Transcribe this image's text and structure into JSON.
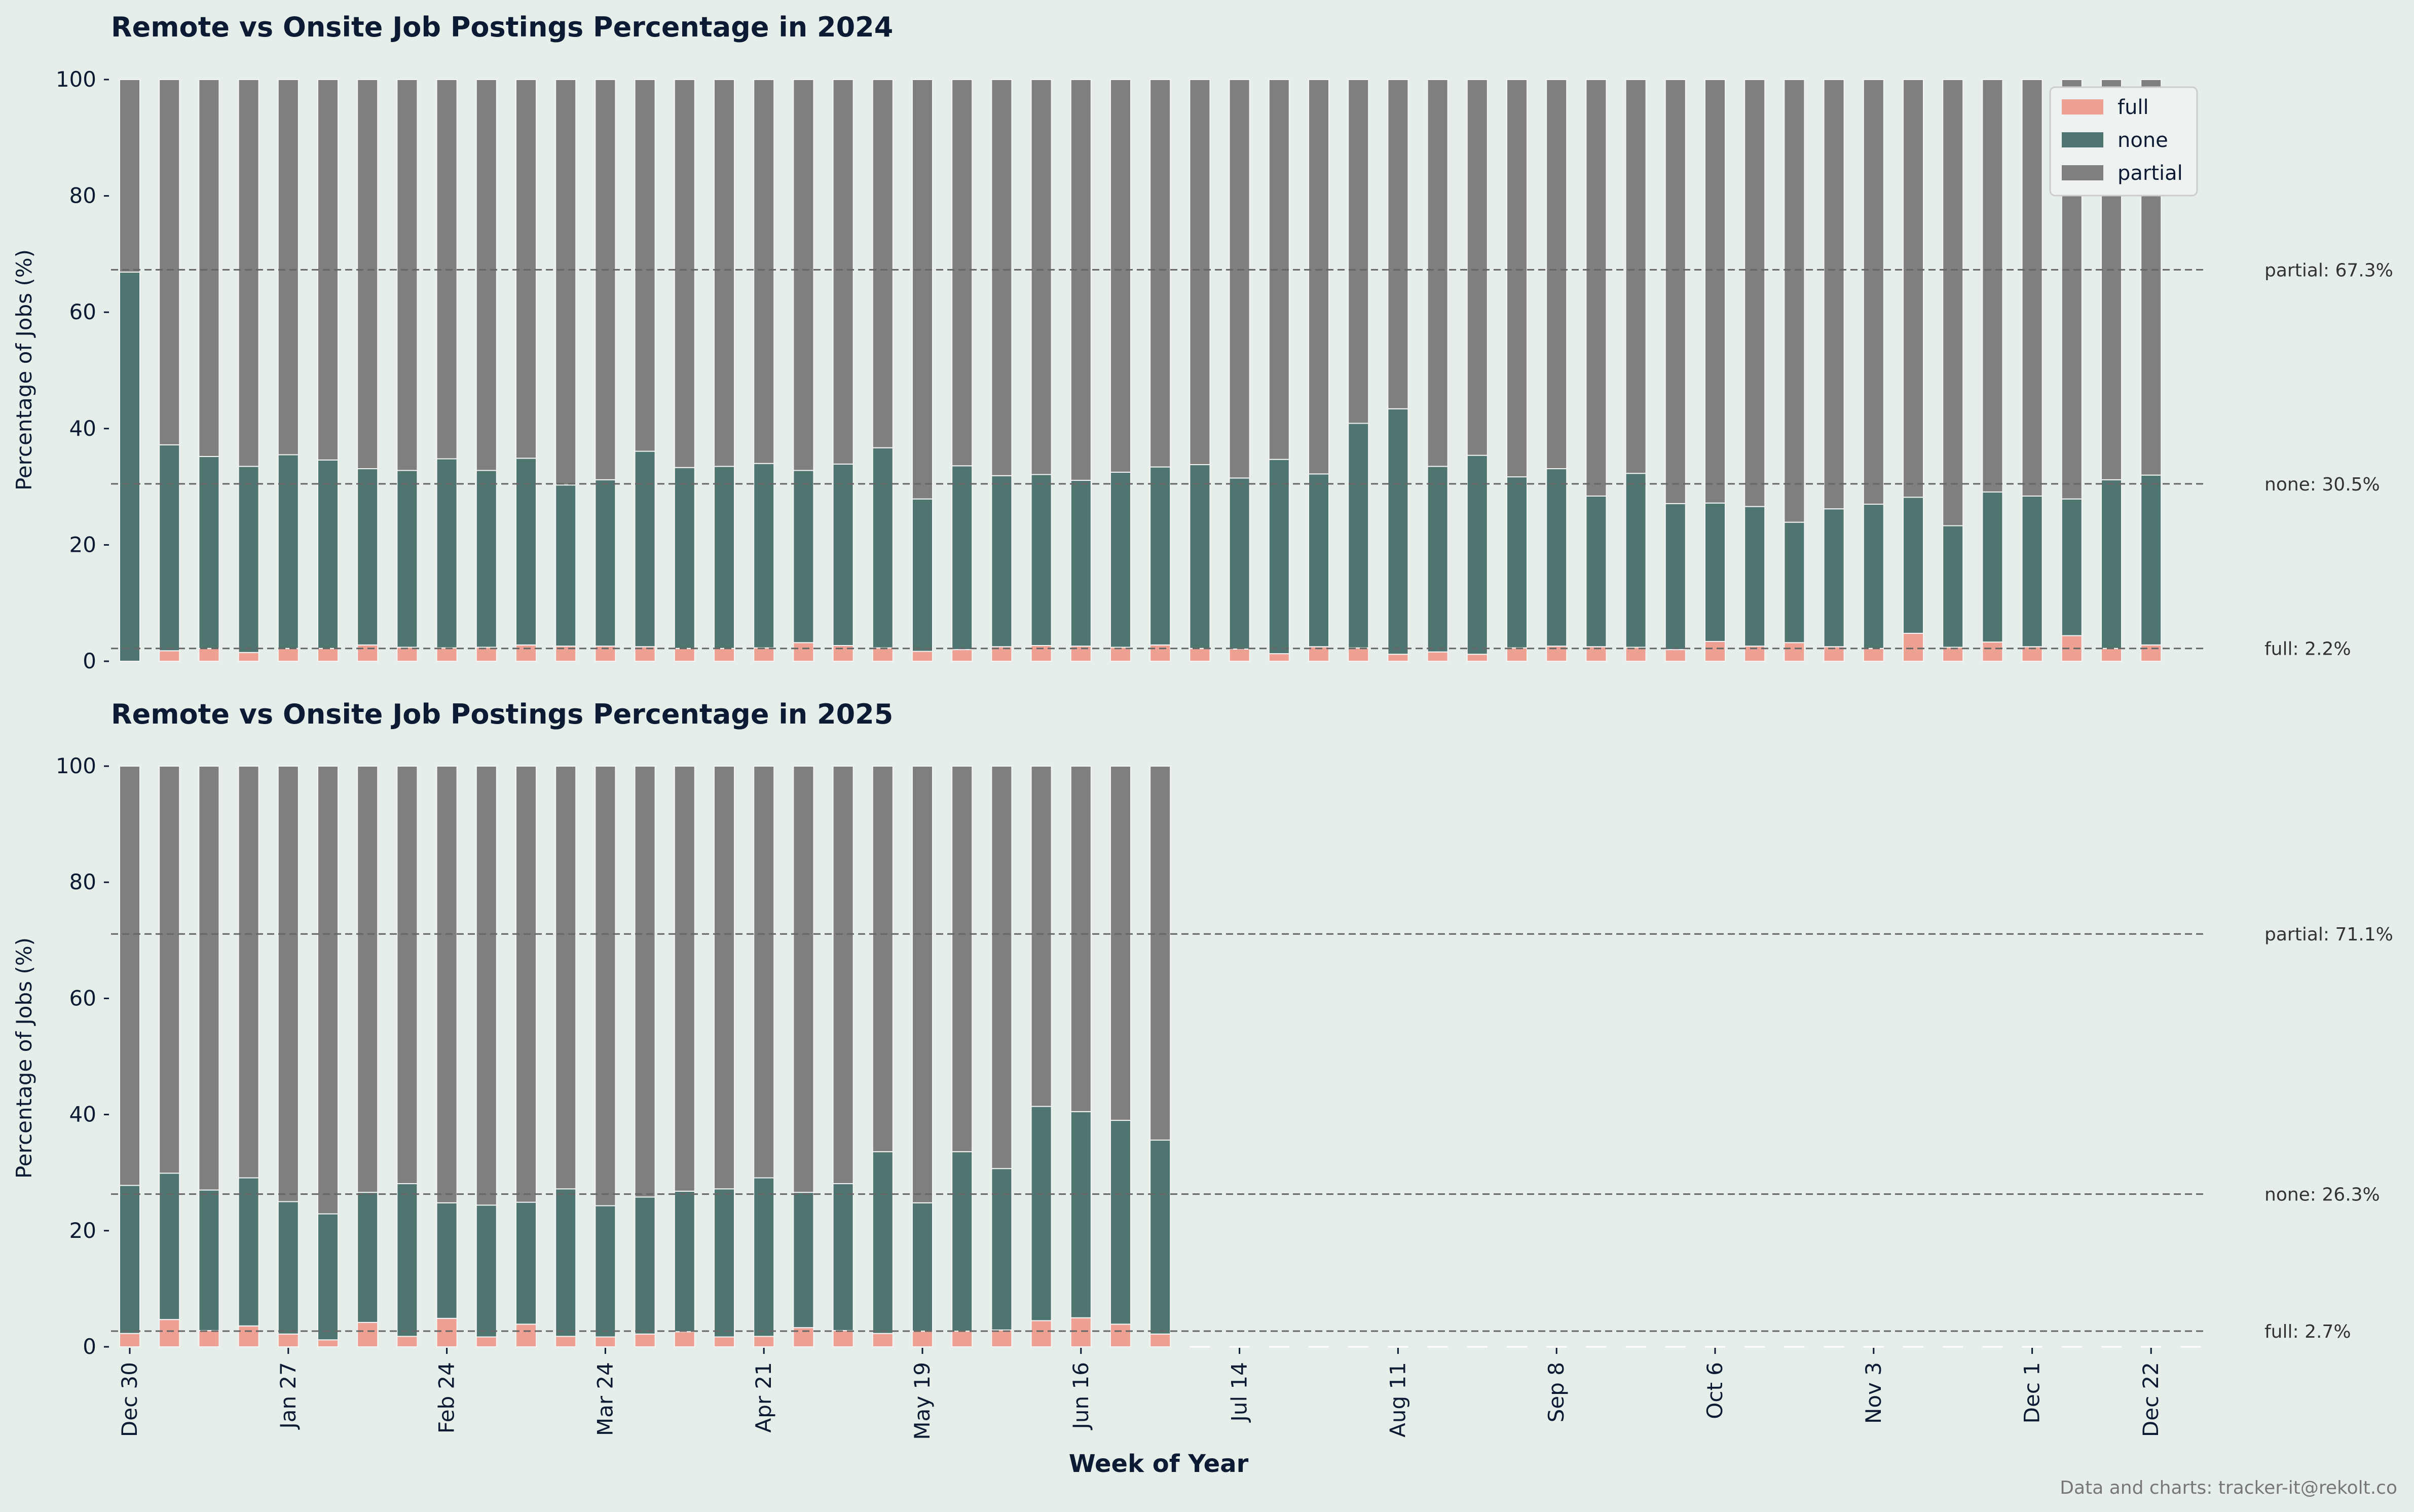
{
  "colors": {
    "full": "#eea092",
    "none": "#4f7571",
    "partial": "#7f7f7f",
    "background": "#e6eeea",
    "text": "#0c1b33",
    "refline": "#666666"
  },
  "x_ticks": [
    "Dec 30",
    "Jan 27",
    "Feb 24",
    "Mar 24",
    "Apr 21",
    "May 19",
    "Jun 16",
    "Jul 14",
    "Aug 11",
    "Sep 8",
    "Oct 6",
    "Nov 3",
    "Dec 1",
    "Dec 22"
  ],
  "xlabel": "Week of Year",
  "credit": "Data and charts: tracker-it@rekolt.co",
  "chart_data": [
    {
      "type": "bar",
      "stacked": true,
      "title": "Remote vs Onsite Job Postings Percentage in 2024",
      "ylabel": "Percentage of Jobs (%)",
      "ylim": [
        0,
        100
      ],
      "y_ticks": [
        0,
        20,
        40,
        60,
        80,
        100
      ],
      "legend": {
        "position": "top-right",
        "entries": [
          "full",
          "none",
          "partial"
        ]
      },
      "weeks": 52,
      "series": [
        {
          "name": "full",
          "values": [
            0,
            1.8,
            2.2,
            1.5,
            2.2,
            2.2,
            2.8,
            2.4,
            2.3,
            2.4,
            2.8,
            2.6,
            2.6,
            2.5,
            2.2,
            2.2,
            2.3,
            3.2,
            2.7,
            2.3,
            1.7,
            2.0,
            2.5,
            2.7,
            2.6,
            2.4,
            2.8,
            2.2,
            2.1,
            1.3,
            2.5,
            2.3,
            1.2,
            1.6,
            1.2,
            2.3,
            2.6,
            2.5,
            2.4,
            2.0,
            3.4,
            2.6,
            3.2,
            2.5,
            2.2,
            4.8,
            2.4,
            3.3,
            2.5,
            4.4,
            2.2,
            2.8
          ]
        },
        {
          "name": "none",
          "values": [
            66.9,
            35.4,
            33.0,
            32.0,
            33.3,
            32.4,
            30.3,
            30.4,
            32.5,
            30.4,
            32.1,
            27.7,
            28.6,
            33.6,
            31.1,
            31.3,
            31.7,
            29.6,
            31.2,
            34.4,
            26.2,
            31.6,
            29.4,
            29.4,
            28.5,
            30.1,
            30.6,
            31.6,
            29.4,
            33.4,
            29.7,
            38.6,
            42.2,
            31.9,
            34.2,
            29.4,
            30.5,
            25.9,
            29.9,
            25.1,
            23.8,
            24.0,
            20.7,
            23.7,
            24.8,
            23.4,
            20.9,
            25.8,
            25.9,
            23.5,
            29.0,
            29.2
          ]
        },
        {
          "name": "partial",
          "values": [
            33.1,
            62.8,
            64.8,
            66.5,
            64.5,
            65.4,
            66.9,
            67.2,
            65.2,
            67.2,
            65.1,
            69.7,
            68.8,
            63.9,
            66.7,
            66.5,
            66.0,
            67.2,
            66.1,
            63.3,
            72.1,
            66.4,
            68.1,
            67.9,
            68.9,
            67.5,
            66.6,
            66.2,
            68.5,
            65.3,
            67.8,
            59.1,
            56.6,
            66.5,
            64.6,
            68.3,
            66.9,
            71.6,
            67.7,
            72.9,
            72.8,
            73.4,
            76.1,
            73.8,
            73.0,
            71.8,
            76.7,
            70.9,
            71.6,
            72.1,
            68.8,
            68.0
          ]
        }
      ],
      "reference_lines": [
        {
          "series": "partial",
          "value": 67.3,
          "label": "partial: 67.3%"
        },
        {
          "series": "none",
          "value": 30.5,
          "label": "none: 30.5%"
        },
        {
          "series": "full",
          "value": 2.2,
          "label": "full: 2.2%"
        }
      ]
    },
    {
      "type": "bar",
      "stacked": true,
      "title": "Remote vs Onsite Job Postings Percentage in 2025",
      "ylabel": "Percentage of Jobs (%)",
      "ylim": [
        0,
        100
      ],
      "y_ticks": [
        0,
        20,
        40,
        60,
        80,
        100
      ],
      "weeks": 53,
      "series": [
        {
          "name": "full",
          "values": [
            2.3,
            4.7,
            2.8,
            3.6,
            2.2,
            1.2,
            4.2,
            1.8,
            4.9,
            1.7,
            3.9,
            1.8,
            1.7,
            2.2,
            2.6,
            1.7,
            1.8,
            3.3,
            2.8,
            2.3,
            2.7,
            2.7,
            2.9,
            4.5,
            5.0,
            3.9,
            2.2,
            0,
            0,
            0,
            0,
            0,
            0,
            0,
            0,
            0,
            0,
            0,
            0,
            0,
            0,
            0,
            0,
            0,
            0,
            0,
            0,
            0,
            0,
            0,
            0,
            0,
            0
          ]
        },
        {
          "name": "none",
          "values": [
            25.5,
            25.2,
            24.2,
            25.5,
            22.8,
            21.7,
            22.4,
            26.3,
            19.9,
            22.7,
            21.0,
            25.4,
            22.6,
            23.6,
            24.2,
            25.5,
            27.3,
            23.3,
            25.3,
            31.3,
            22.1,
            30.9,
            27.8,
            36.9,
            35.5,
            35.1,
            33.4,
            0,
            0,
            0,
            0,
            0,
            0,
            0,
            0,
            0,
            0,
            0,
            0,
            0,
            0,
            0,
            0,
            0,
            0,
            0,
            0,
            0,
            0,
            0,
            0,
            0,
            0
          ]
        },
        {
          "name": "partial",
          "values": [
            72.2,
            70.1,
            73.0,
            70.9,
            75.0,
            77.1,
            73.4,
            71.9,
            75.2,
            75.6,
            75.1,
            72.8,
            75.7,
            74.2,
            73.2,
            72.8,
            70.9,
            73.4,
            71.9,
            66.4,
            75.2,
            66.4,
            69.3,
            58.6,
            59.5,
            61.0,
            64.4,
            0,
            0,
            0,
            0,
            0,
            0,
            0,
            0,
            0,
            0,
            0,
            0,
            0,
            0,
            0,
            0,
            0,
            0,
            0,
            0,
            0,
            0,
            0,
            0,
            0,
            0
          ]
        }
      ],
      "reference_lines": [
        {
          "series": "partial",
          "value": 71.1,
          "label": "partial: 71.1%"
        },
        {
          "series": "none",
          "value": 26.3,
          "label": "none: 26.3%"
        },
        {
          "series": "full",
          "value": 2.7,
          "label": "full: 2.7%"
        }
      ]
    }
  ]
}
